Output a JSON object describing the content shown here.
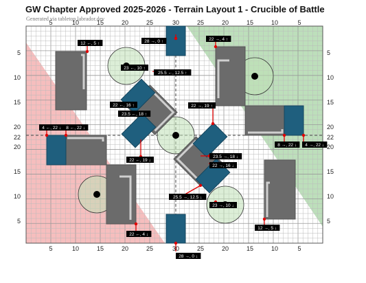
{
  "header": {
    "title": "GW Chapter Approved 2025-2026 - Terrain Layout 1 - Crucible of Battle",
    "subtitle": "Generated via tabletop.labrador.dev"
  },
  "colors": {
    "red_zone": "#f5b3b3",
    "green_zone": "#b6dcb4",
    "ruin": "#6b6b6b",
    "container": "#1f5f7e",
    "objective_fill": "#bfe0b7",
    "wall": "#cfcfcf",
    "marker": "#e00000"
  },
  "axes": {
    "top": [
      "5",
      "10",
      "15",
      "20",
      "25",
      "30",
      "25",
      "20",
      "15",
      "10",
      "5"
    ],
    "bottom": [
      "5",
      "10",
      "15",
      "20",
      "25",
      "30",
      "25",
      "20",
      "15",
      "10",
      "5"
    ],
    "left": [
      "5",
      "10",
      "15",
      "20",
      "22",
      "20",
      "15",
      "10",
      "5"
    ],
    "right": [
      "5",
      "10",
      "15",
      "20",
      "22",
      "20",
      "15",
      "10",
      "5"
    ]
  },
  "labels": [
    {
      "id": "l1",
      "text": "12 ←, 5 ↑"
    },
    {
      "id": "l2",
      "text": "28 →, 0 ↑"
    },
    {
      "id": "l3",
      "text": "22 →, 4 ↑"
    },
    {
      "id": "l4",
      "text": "23 ←, 10 ↑"
    },
    {
      "id": "l5",
      "text": "25.5 ←, 12.5 ↑"
    },
    {
      "id": "l6",
      "text": "22 ←, 16 ↑"
    },
    {
      "id": "l7",
      "text": "23.5 ←, 18 ↑"
    },
    {
      "id": "l8",
      "text": "22 →, 19 ↑"
    },
    {
      "id": "l9",
      "text": "4 ←, 22 ↓"
    },
    {
      "id": "l10",
      "text": "8 ←, 22 ↓"
    },
    {
      "id": "l11",
      "text": "8 →, 22 ↓"
    },
    {
      "id": "l12",
      "text": "4 →, 22 ↓"
    },
    {
      "id": "l13",
      "text": "22 ←, 19 ↓"
    },
    {
      "id": "l14",
      "text": "23.5 →, 18 ↓"
    },
    {
      "id": "l15",
      "text": "22 →, 16 ↓"
    },
    {
      "id": "l16",
      "text": "25.5 →, 12.5 ↓"
    },
    {
      "id": "l17",
      "text": "23 →, 10 ↓"
    },
    {
      "id": "l18",
      "text": "22 ←, 4 ↓"
    },
    {
      "id": "l19",
      "text": "12 →, 5 ↓"
    },
    {
      "id": "l20",
      "text": "28 →, 0 ↓"
    }
  ]
}
